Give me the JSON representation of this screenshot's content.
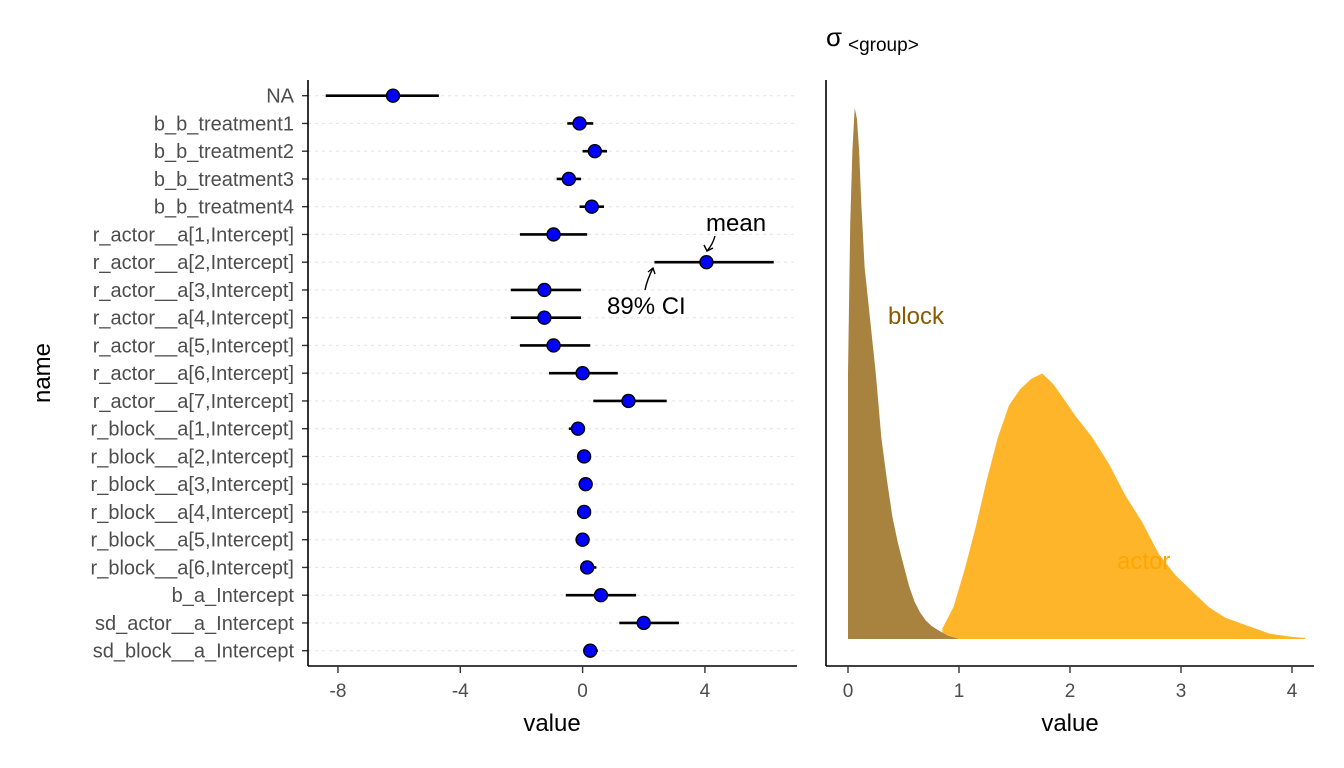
{
  "chart_data": [
    {
      "type": "forest",
      "xlabel": "value",
      "ylabel": "name",
      "xlim": [
        -9,
        6.6
      ],
      "xticks": [
        -8,
        -4,
        0,
        4
      ],
      "grid": "horizontal dotted",
      "point_color": "#0000ff",
      "rows": [
        {
          "name": "NA",
          "mean": -6.2,
          "lo": -8.4,
          "hi": -4.7
        },
        {
          "name": "b_b_treatment1",
          "mean": -0.1,
          "lo": -0.5,
          "hi": 0.35
        },
        {
          "name": "b_b_treatment2",
          "mean": 0.4,
          "lo": 0.0,
          "hi": 0.8
        },
        {
          "name": "b_b_treatment3",
          "mean": -0.45,
          "lo": -0.85,
          "hi": -0.05
        },
        {
          "name": "b_b_treatment4",
          "mean": 0.3,
          "lo": -0.1,
          "hi": 0.7
        },
        {
          "name": "r_actor__a[1,Intercept]",
          "mean": -0.95,
          "lo": -2.05,
          "hi": 0.15
        },
        {
          "name": "r_actor__a[2,Intercept]",
          "mean": 4.05,
          "lo": 2.35,
          "hi": 6.25
        },
        {
          "name": "r_actor__a[3,Intercept]",
          "mean": -1.25,
          "lo": -2.35,
          "hi": -0.05
        },
        {
          "name": "r_actor__a[4,Intercept]",
          "mean": -1.25,
          "lo": -2.35,
          "hi": -0.05
        },
        {
          "name": "r_actor__a[5,Intercept]",
          "mean": -0.95,
          "lo": -2.05,
          "hi": 0.25
        },
        {
          "name": "r_actor__a[6,Intercept]",
          "mean": 0.0,
          "lo": -1.1,
          "hi": 1.15
        },
        {
          "name": "r_actor__a[7,Intercept]",
          "mean": 1.5,
          "lo": 0.35,
          "hi": 2.75
        },
        {
          "name": "r_block__a[1,Intercept]",
          "mean": -0.15,
          "lo": -0.45,
          "hi": 0.05
        },
        {
          "name": "r_block__a[2,Intercept]",
          "mean": 0.05,
          "lo": -0.1,
          "hi": 0.2
        },
        {
          "name": "r_block__a[3,Intercept]",
          "mean": 0.1,
          "lo": -0.1,
          "hi": 0.25
        },
        {
          "name": "r_block__a[4,Intercept]",
          "mean": 0.05,
          "lo": -0.1,
          "hi": 0.2
        },
        {
          "name": "r_block__a[5,Intercept]",
          "mean": 0.0,
          "lo": -0.2,
          "hi": 0.15
        },
        {
          "name": "r_block__a[6,Intercept]",
          "mean": 0.15,
          "lo": 0.0,
          "hi": 0.45
        },
        {
          "name": "b_a_Intercept",
          "mean": 0.6,
          "lo": -0.55,
          "hi": 1.75
        },
        {
          "name": "sd_actor__a_Intercept",
          "mean": 2.0,
          "lo": 1.2,
          "hi": 3.15
        },
        {
          "name": "sd_block__a_Intercept",
          "mean": 0.25,
          "lo": 0.1,
          "hi": 0.5
        }
      ],
      "annotations": [
        {
          "text": "mean",
          "points_to": "r_actor__a[2,Intercept] mean"
        },
        {
          "text": "89% CI",
          "points_to": "r_actor__a[2,Intercept] interval"
        }
      ]
    },
    {
      "type": "area",
      "title_base": "σ",
      "title_sub": "<group>",
      "xlabel": "value",
      "xlim": [
        -0.2,
        4.15
      ],
      "xticks": [
        0,
        1,
        2,
        3,
        4
      ],
      "series": [
        {
          "name": "actor",
          "color": "#ffb52a",
          "x": [
            0.85,
            0.95,
            1.05,
            1.15,
            1.25,
            1.35,
            1.45,
            1.55,
            1.65,
            1.75,
            1.85,
            1.95,
            2.05,
            2.2,
            2.35,
            2.5,
            2.65,
            2.8,
            2.95,
            3.1,
            3.25,
            3.4,
            3.6,
            3.8,
            4.0,
            4.12
          ],
          "y": [
            0.02,
            0.06,
            0.13,
            0.21,
            0.3,
            0.38,
            0.44,
            0.47,
            0.49,
            0.5,
            0.48,
            0.45,
            0.42,
            0.38,
            0.33,
            0.27,
            0.22,
            0.16,
            0.12,
            0.09,
            0.06,
            0.04,
            0.025,
            0.01,
            0.004,
            0.002
          ]
        },
        {
          "name": "block",
          "color": "#a8823f",
          "x": [
            0.0,
            0.02,
            0.04,
            0.06,
            0.08,
            0.1,
            0.12,
            0.15,
            0.2,
            0.25,
            0.3,
            0.35,
            0.4,
            0.45,
            0.5,
            0.55,
            0.6,
            0.65,
            0.7,
            0.75,
            0.8,
            0.85,
            0.9,
            0.95,
            1.0
          ],
          "y": [
            0.5,
            0.78,
            0.92,
            1.0,
            0.98,
            0.92,
            0.82,
            0.7,
            0.6,
            0.5,
            0.38,
            0.3,
            0.23,
            0.18,
            0.14,
            0.1,
            0.07,
            0.05,
            0.035,
            0.025,
            0.018,
            0.012,
            0.006,
            0.003,
            0.0
          ]
        }
      ],
      "labels": [
        {
          "text": "block",
          "color": "#8b5a00"
        },
        {
          "text": "actor",
          "color": "#ffa500"
        }
      ]
    }
  ]
}
